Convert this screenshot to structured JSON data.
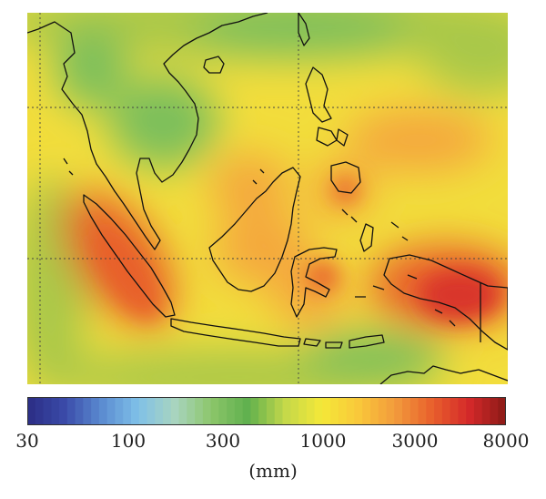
{
  "colorbar": {
    "scale": "log",
    "range": [
      30,
      8000
    ],
    "ticks": [
      "30",
      "100",
      "300",
      "1000",
      "3000",
      "8000"
    ],
    "tick_values": [
      30,
      100,
      300,
      1000,
      3000,
      8000
    ],
    "unit": "(mm)",
    "colors": [
      "#2b2d84",
      "#3a4aa8",
      "#5a8ad0",
      "#7fc0e8",
      "#a8d4c0",
      "#8cc66a",
      "#5fb04e",
      "#c4d84a",
      "#f4e838",
      "#f9c83a",
      "#f29a3c",
      "#e8602c",
      "#d4282a",
      "#8a1a16"
    ]
  },
  "map": {
    "colors": {
      "background": "#f2dd3c",
      "wet": "#e8602c",
      "very_wet": "#d9362c",
      "moderate": "#f4a83c",
      "dry_green": "#7cbf5c",
      "mid_green": "#a9c84a",
      "coast_line": "#111111",
      "grid_line": "#444444"
    }
  }
}
